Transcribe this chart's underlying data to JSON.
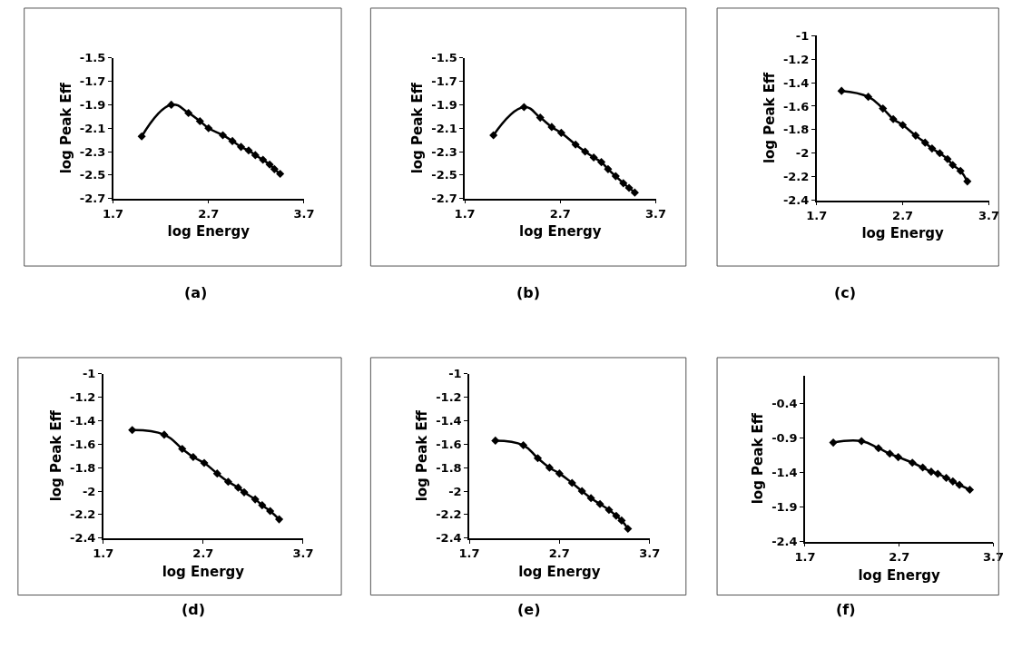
{
  "chart_data": [
    {
      "type": "line",
      "xlabel": "log Energy",
      "ylabel": "log Peak Eff",
      "annotations": [
        "(a)"
      ],
      "xlim": [
        1.7,
        3.7
      ],
      "xticks": [
        1.7,
        2.7,
        3.7
      ],
      "ylim": [
        -2.7,
        -1.5
      ],
      "yticks": [
        -2.7,
        -2.5,
        -2.3,
        -2.1,
        -1.9,
        -1.7,
        -1.5
      ],
      "marker": "diamond",
      "line_style": "solid",
      "series": [
        {
          "color": "#000000",
          "x": [
            2.0,
            2.31,
            2.49,
            2.61,
            2.7,
            2.85,
            2.95,
            3.04,
            3.12,
            3.19,
            3.27,
            3.34,
            3.39,
            3.45
          ],
          "values": [
            -2.17,
            -1.9,
            -1.97,
            -2.04,
            -2.1,
            -2.16,
            -2.21,
            -2.26,
            -2.29,
            -2.33,
            -2.37,
            -2.41,
            -2.45,
            -2.49
          ]
        }
      ]
    },
    {
      "type": "line",
      "xlabel": "log Energy",
      "ylabel": "log Peak Eff",
      "annotations": [
        "(b)"
      ],
      "xlim": [
        1.7,
        3.7
      ],
      "xticks": [
        1.7,
        2.7,
        3.7
      ],
      "ylim": [
        -2.7,
        -1.5
      ],
      "yticks": [
        -2.7,
        -2.5,
        -2.3,
        -2.1,
        -1.9,
        -1.7,
        -1.5
      ],
      "marker": "diamond",
      "line_style": "solid",
      "series": [
        {
          "color": "#000000",
          "x": [
            2.0,
            2.32,
            2.49,
            2.61,
            2.71,
            2.86,
            2.96,
            3.05,
            3.13,
            3.2,
            3.28,
            3.36,
            3.42,
            3.48
          ],
          "values": [
            -2.16,
            -1.92,
            -2.01,
            -2.09,
            -2.14,
            -2.24,
            -2.3,
            -2.35,
            -2.39,
            -2.45,
            -2.51,
            -2.57,
            -2.61,
            -2.65
          ]
        }
      ]
    },
    {
      "type": "line",
      "xlabel": "log Energy",
      "ylabel": "log Peak Eff",
      "annotations": [
        "(c)"
      ],
      "xlim": [
        1.7,
        3.7
      ],
      "xticks": [
        1.7,
        2.7,
        3.7
      ],
      "ylim": [
        -2.4,
        -1
      ],
      "yticks": [
        -2.4,
        -2.2,
        -2,
        -1.8,
        -1.6,
        -1.4,
        -1.2,
        -1
      ],
      "marker": "diamond",
      "line_style": "solid",
      "series": [
        {
          "color": "#000000",
          "x": [
            1.99,
            2.3,
            2.47,
            2.59,
            2.7,
            2.85,
            2.96,
            3.04,
            3.13,
            3.22,
            3.28,
            3.37,
            3.45
          ],
          "values": [
            -1.47,
            -1.52,
            -1.62,
            -1.71,
            -1.76,
            -1.85,
            -1.91,
            -1.96,
            -2.0,
            -2.05,
            -2.1,
            -2.15,
            -2.24
          ]
        }
      ]
    },
    {
      "type": "line",
      "xlabel": "log Energy",
      "ylabel": "log Peak Eff",
      "annotations": [
        "(d)"
      ],
      "xlim": [
        1.7,
        3.7
      ],
      "xticks": [
        1.7,
        2.7,
        3.7
      ],
      "ylim": [
        -2.4,
        -1
      ],
      "yticks": [
        -2.4,
        -2.2,
        -2,
        -1.8,
        -1.6,
        -1.4,
        -1.2,
        -1
      ],
      "marker": "diamond",
      "line_style": "solid",
      "series": [
        {
          "color": "#000000",
          "x": [
            1.99,
            2.31,
            2.49,
            2.6,
            2.71,
            2.84,
            2.95,
            3.05,
            3.11,
            3.22,
            3.29,
            3.37,
            3.46
          ],
          "values": [
            -1.48,
            -1.52,
            -1.64,
            -1.71,
            -1.76,
            -1.85,
            -1.92,
            -1.97,
            -2.01,
            -2.07,
            -2.12,
            -2.17,
            -2.24
          ]
        }
      ]
    },
    {
      "type": "line",
      "xlabel": "log Energy",
      "ylabel": "log Peak Eff",
      "annotations": [
        "(e)"
      ],
      "xlim": [
        1.7,
        3.7
      ],
      "xticks": [
        1.7,
        2.7,
        3.7
      ],
      "ylim": [
        -2.4,
        -1
      ],
      "yticks": [
        -2.4,
        -2.2,
        -2,
        -1.8,
        -1.6,
        -1.4,
        -1.2,
        -1
      ],
      "marker": "diamond",
      "line_style": "solid",
      "series": [
        {
          "color": "#000000",
          "x": [
            1.99,
            2.3,
            2.46,
            2.59,
            2.7,
            2.84,
            2.95,
            3.05,
            3.15,
            3.25,
            3.33,
            3.39,
            3.46
          ],
          "values": [
            -1.57,
            -1.61,
            -1.72,
            -1.8,
            -1.85,
            -1.93,
            -2.0,
            -2.06,
            -2.11,
            -2.16,
            -2.21,
            -2.25,
            -2.32
          ]
        }
      ]
    },
    {
      "type": "line",
      "xlabel": "log Energy",
      "ylabel": "log Peak Eff",
      "annotations": [
        "(f)"
      ],
      "xlim": [
        1.7,
        3.7
      ],
      "xticks": [
        1.7,
        2.7,
        3.7
      ],
      "ylim": [
        -2.4,
        0
      ],
      "yticks": [
        -2.4,
        -1.9,
        -1.4,
        -0.9,
        -0.4
      ],
      "marker": "diamond",
      "line_style": "solid",
      "series": [
        {
          "color": "#000000",
          "x": [
            2.0,
            2.3,
            2.48,
            2.6,
            2.69,
            2.84,
            2.95,
            3.04,
            3.11,
            3.2,
            3.27,
            3.34,
            3.45
          ],
          "values": [
            -0.97,
            -0.95,
            -1.05,
            -1.13,
            -1.18,
            -1.26,
            -1.33,
            -1.39,
            -1.42,
            -1.48,
            -1.53,
            -1.58,
            -1.65
          ]
        }
      ]
    }
  ]
}
